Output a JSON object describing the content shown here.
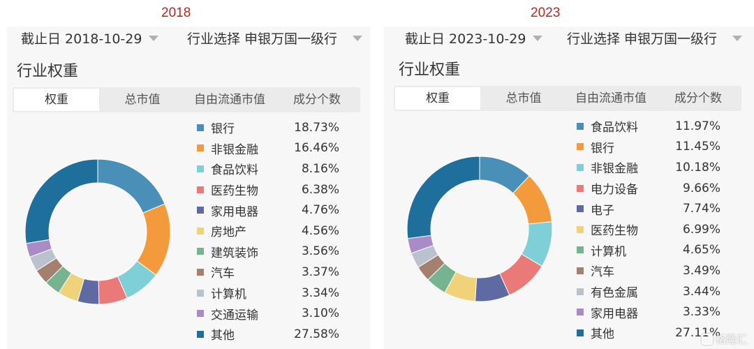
{
  "panels": [
    {
      "year": "2018",
      "date_label": "截止日 2018-10-29",
      "industry_label": "行业选择 申银万国一级行",
      "section_title": "行业权重",
      "tabs": [
        "权重",
        "总市值",
        "自由流通市值",
        "成分个数"
      ],
      "active_tab": 0
    },
    {
      "year": "2023",
      "date_label": "截止日 2023-10-29",
      "industry_label": "行业选择 申银万国一级行",
      "section_title": "行业权重",
      "tabs": [
        "权重",
        "总市值",
        "自由流通市值",
        "成分个数"
      ],
      "active_tab": 0
    }
  ],
  "chart_data": [
    {
      "type": "pie",
      "title": "2018",
      "donut": true,
      "legend_position": "right",
      "categories": [
        "银行",
        "非银金融",
        "食品饮料",
        "医药生物",
        "家用电器",
        "房地产",
        "建筑装饰",
        "汽车",
        "计算机",
        "交通运输",
        "其他"
      ],
      "values": [
        18.73,
        16.46,
        8.16,
        6.38,
        4.76,
        4.56,
        3.56,
        3.37,
        3.34,
        3.1,
        27.58
      ],
      "labels": [
        "18.73%",
        "16.46%",
        "8.16%",
        "6.38%",
        "4.76%",
        "4.56%",
        "3.56%",
        "3.37%",
        "3.34%",
        "3.10%",
        "27.58%"
      ],
      "colors": [
        "#4a8fb8",
        "#f39b3c",
        "#7fcfd6",
        "#e97a78",
        "#5f6aa3",
        "#f0d27a",
        "#76b38f",
        "#a4816e",
        "#b9c2cd",
        "#a98bc8",
        "#1f6f9c"
      ]
    },
    {
      "type": "pie",
      "title": "2023",
      "donut": true,
      "legend_position": "right",
      "categories": [
        "食品饮料",
        "银行",
        "非银金融",
        "电力设备",
        "电子",
        "医药生物",
        "计算机",
        "汽车",
        "有色金属",
        "家用电器",
        "其他"
      ],
      "values": [
        11.97,
        11.45,
        10.18,
        9.66,
        7.74,
        6.99,
        4.65,
        3.49,
        3.44,
        3.33,
        27.11
      ],
      "labels": [
        "11.97%",
        "11.45%",
        "10.18%",
        "9.66%",
        "7.74%",
        "6.99%",
        "4.65%",
        "3.49%",
        "3.44%",
        "3.33%",
        "27.11%"
      ],
      "colors": [
        "#4a8fb8",
        "#f39b3c",
        "#7fcfd6",
        "#e97a78",
        "#5f6aa3",
        "#f0d27a",
        "#76b38f",
        "#a4816e",
        "#b9c2cd",
        "#a98bc8",
        "#1f6f9c"
      ]
    }
  ],
  "watermark": "格隆汇"
}
